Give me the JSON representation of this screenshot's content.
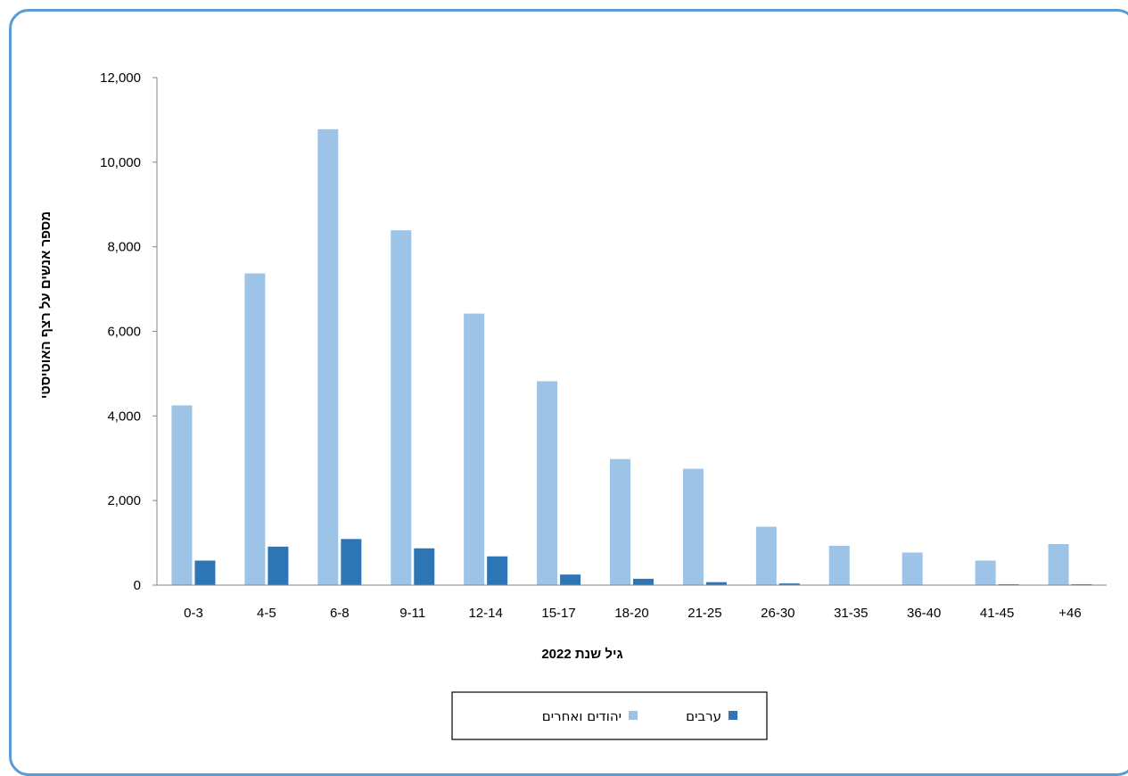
{
  "chart_data": {
    "type": "bar",
    "categories": [
      "0-3",
      "4-5",
      "6-8",
      "9-11",
      "12-14",
      "15-17",
      "18-20",
      "21-25",
      "26-30",
      "31-35",
      "36-40",
      "41-45",
      "+46"
    ],
    "series": [
      {
        "name": "יהודים ואחרים",
        "color": "#9dc3e6",
        "values": [
          4250,
          7370,
          10780,
          8390,
          6420,
          4820,
          2980,
          2750,
          1380,
          930,
          770,
          580,
          970
        ]
      },
      {
        "name": "ערבים",
        "color": "#2e75b6",
        "values": [
          580,
          910,
          1090,
          870,
          680,
          250,
          150,
          70,
          40,
          0,
          0,
          20,
          20
        ]
      }
    ],
    "xlabel": "גיל שנת 2022",
    "ylabel": "מספר אנשים על רצף האוטיסטי",
    "ylim": [
      0,
      12000
    ],
    "yticks": [
      "0",
      "2,000",
      "4,000",
      "6,000",
      "8,000",
      "10,000",
      "12,000"
    ],
    "grid": false,
    "legend_position": "bottom"
  },
  "colors": {
    "frame": "#5b9bd5"
  }
}
